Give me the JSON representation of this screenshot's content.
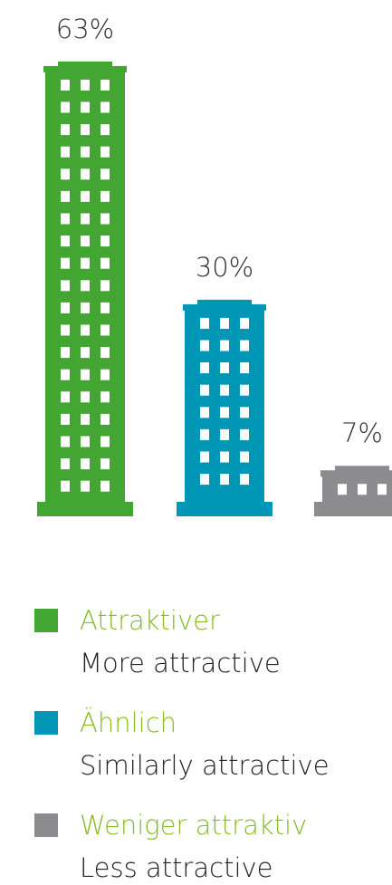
{
  "chart_data": {
    "type": "bar",
    "categories": [
      null
    ],
    "series": [
      {
        "name": "Attraktiver",
        "description": "More attractive",
        "color": "#43a633",
        "values": [
          63
        ],
        "value_labels": [
          "63%"
        ]
      },
      {
        "name": "Ähnlich",
        "description": "Similarly attractive",
        "color": "#0097b7",
        "values": [
          30
        ],
        "value_labels": [
          "30%"
        ]
      },
      {
        "name": "Weniger attraktiv",
        "description": "Less attractive",
        "color": "#8c8c8e",
        "values": [
          7
        ],
        "value_labels": [
          "7%"
        ]
      }
    ]
  }
}
